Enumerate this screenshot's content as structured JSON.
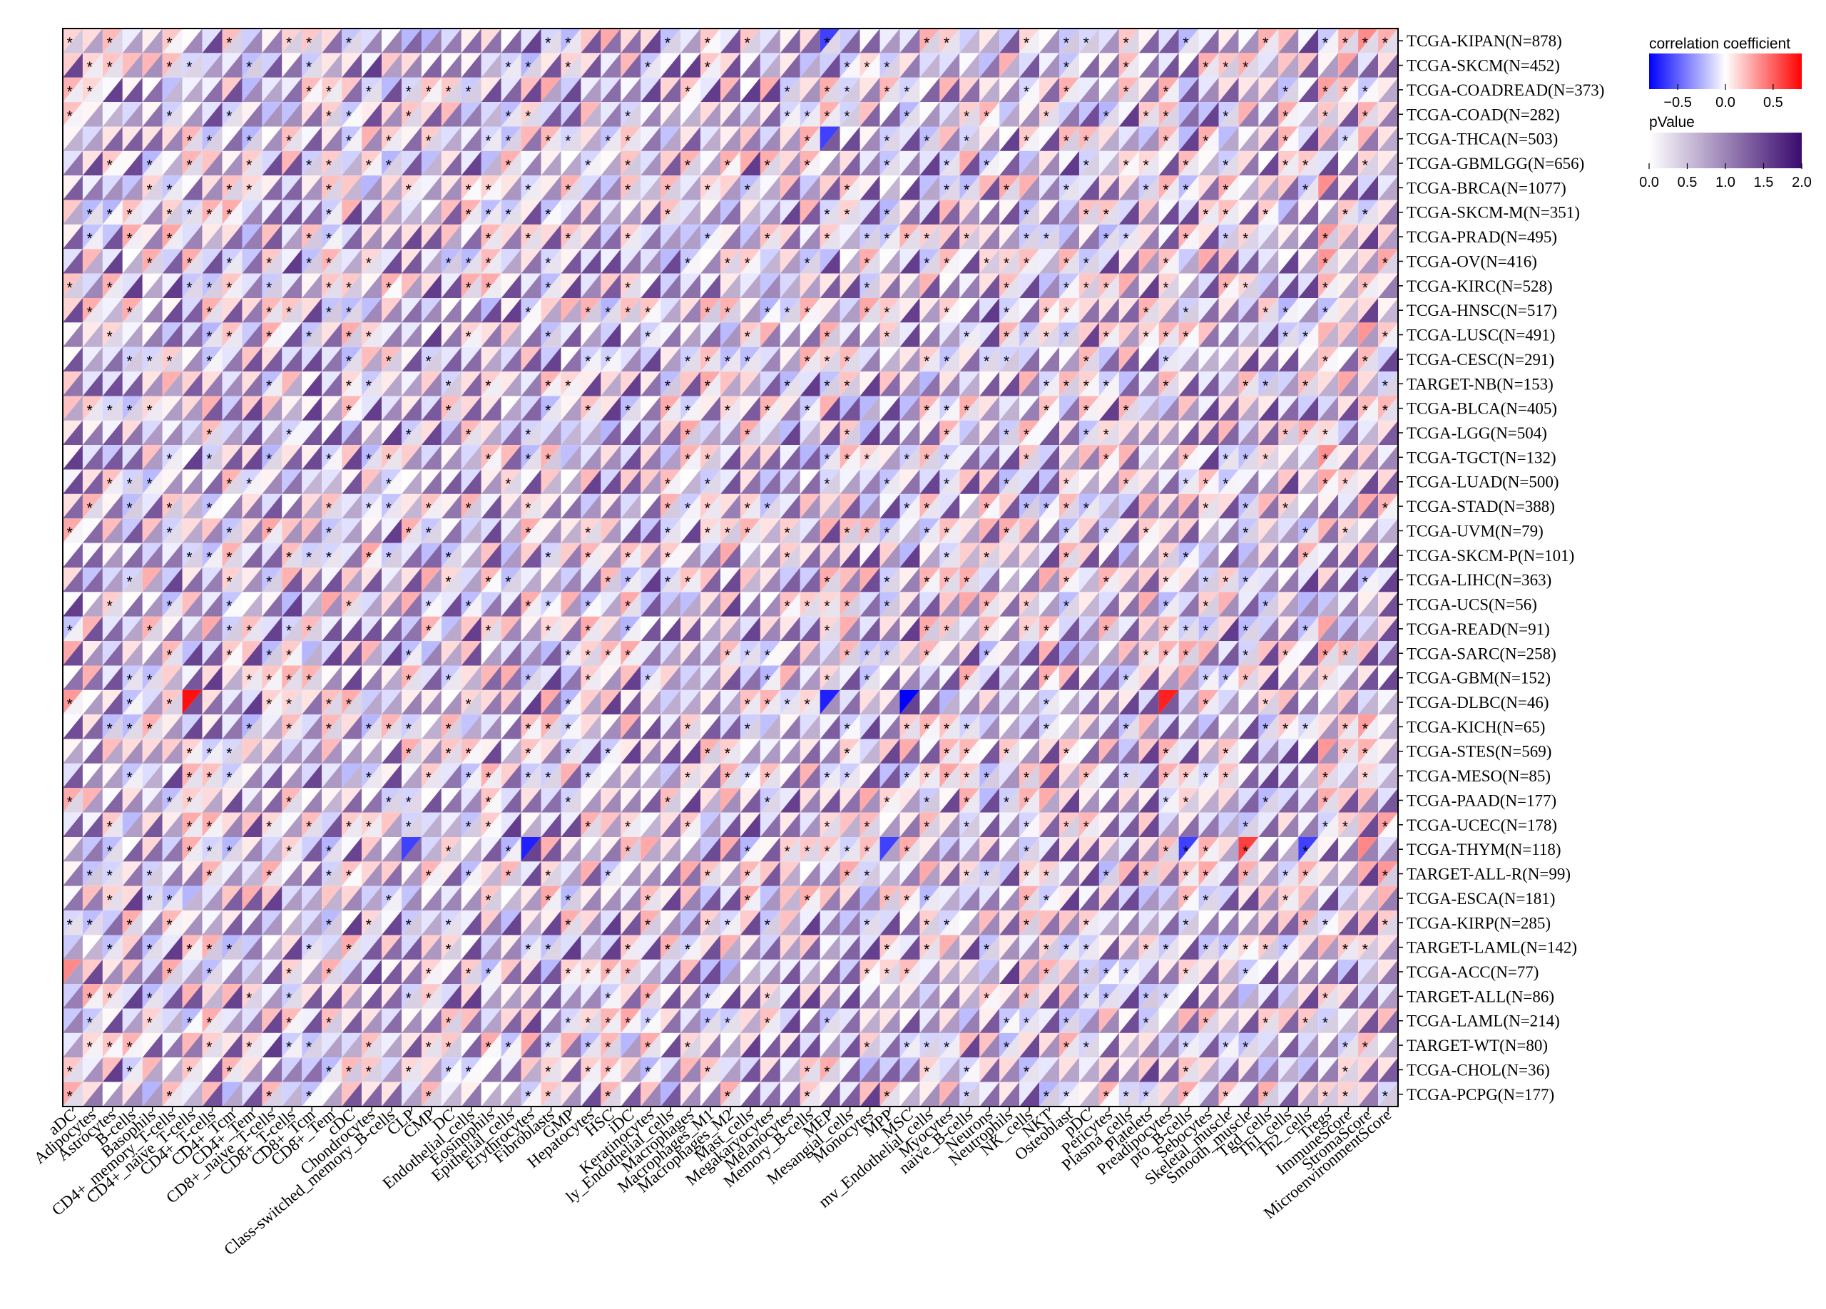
{
  "chart_data": {
    "type": "heatmap",
    "title": "",
    "xlabel": "",
    "ylabel": "",
    "rows": [
      "TCGA-KIPAN(N=878)",
      "TCGA-SKCM(N=452)",
      "TCGA-COADREAD(N=373)",
      "TCGA-COAD(N=282)",
      "TCGA-THCA(N=503)",
      "TCGA-GBMLGG(N=656)",
      "TCGA-BRCA(N=1077)",
      "TCGA-SKCM-M(N=351)",
      "TCGA-PRAD(N=495)",
      "TCGA-OV(N=416)",
      "TCGA-KIRC(N=528)",
      "TCGA-HNSC(N=517)",
      "TCGA-LUSC(N=491)",
      "TCGA-CESC(N=291)",
      "TARGET-NB(N=153)",
      "TCGA-BLCA(N=405)",
      "TCGA-LGG(N=504)",
      "TCGA-TGCT(N=132)",
      "TCGA-LUAD(N=500)",
      "TCGA-STAD(N=388)",
      "TCGA-UVM(N=79)",
      "TCGA-SKCM-P(N=101)",
      "TCGA-LIHC(N=363)",
      "TCGA-UCS(N=56)",
      "TCGA-READ(N=91)",
      "TCGA-SARC(N=258)",
      "TCGA-GBM(N=152)",
      "TCGA-DLBC(N=46)",
      "TCGA-KICH(N=65)",
      "TCGA-STES(N=569)",
      "TCGA-MESO(N=85)",
      "TCGA-PAAD(N=177)",
      "TCGA-UCEC(N=178)",
      "TCGA-THYM(N=118)",
      "TARGET-ALL-R(N=99)",
      "TCGA-ESCA(N=181)",
      "TCGA-KIRP(N=285)",
      "TARGET-LAML(N=142)",
      "TCGA-ACC(N=77)",
      "TARGET-ALL(N=86)",
      "TCGA-LAML(N=214)",
      "TARGET-WT(N=80)",
      "TCGA-CHOL(N=36)",
      "TCGA-PCPG(N=177)"
    ],
    "columns": [
      "aDC",
      "Adipocytes",
      "Astrocytes",
      "B-cells",
      "Basophils",
      "CD4+_memory_T-cells",
      "CD4+_naive_T-cells",
      "CD4+_T-cells",
      "CD4+_Tcm",
      "CD4+_Tem",
      "CD8+_naive_T-cells",
      "CD8+_T-cells",
      "CD8+_Tcm",
      "CD8+_Tem",
      "cDC",
      "Chondrocytes",
      "Class-switched_memory_B-cells",
      "CLP",
      "CMP",
      "DC",
      "Endothelial_cells",
      "Eosinophils",
      "Epithelial_cells",
      "Erythrocytes",
      "Fibroblasts",
      "GMP",
      "Hepatocytes",
      "HSC",
      "iDC",
      "Keratinocytes",
      "ly_Endothelial_cells",
      "Macrophages",
      "Macrophages_M1",
      "Macrophages_M2",
      "Mast_cells",
      "Megakaryocytes",
      "Melanocytes",
      "Memory_B-cells",
      "MEP",
      "Mesangial_cells",
      "Monocytes",
      "MPP",
      "MSC",
      "mv_Endothelial_cells",
      "Myocytes",
      "naive_B-cells",
      "Neurons",
      "Neutrophils",
      "NK_cells",
      "NKT",
      "Osteoblast",
      "pDC",
      "Pericytes",
      "Plasma_cells",
      "Platelets",
      "Preadipocytes",
      "pro_B-cells",
      "Sebocytes",
      "Skeletal_muscle",
      "Smooth_muscle",
      "Tgd_cells",
      "Th1_cells",
      "Th2_cells",
      "Tregs",
      "ImmuneScore",
      "StromaScore",
      "MicroenvironmentScore"
    ],
    "significance_marker": "*",
    "legend": {
      "position": "top-right",
      "correlation": {
        "title": "correlation coefficient",
        "range": [
          -0.8,
          0.8
        ],
        "ticks": [
          "−0.5",
          "0.0",
          "0.5"
        ],
        "tick_values": [
          -0.5,
          0.0,
          0.5
        ],
        "low_color": "#0000FF",
        "mid_color": "#FFFFFF",
        "high_color": "#FF0000"
      },
      "pvalue": {
        "title": "pValue",
        "range": [
          0.0,
          2.0
        ],
        "ticks": [
          "0.0",
          "0.5",
          "1.0",
          "1.5",
          "2.0"
        ],
        "tick_values": [
          0.0,
          0.5,
          1.0,
          1.5,
          2.0
        ],
        "low_color": "#FFFFFF",
        "high_color": "#3A0A6E"
      }
    },
    "highlighted_cells": [
      {
        "row": "TCGA-DLBC(N=46)",
        "column": "CD4+_naive_T-cells",
        "correlation": 0.75
      },
      {
        "row": "TCGA-DLBC(N=46)",
        "column": "MEP",
        "correlation": -0.7
      },
      {
        "row": "TCGA-DLBC(N=46)",
        "column": "MSC",
        "correlation": -0.8
      },
      {
        "row": "TCGA-DLBC(N=46)",
        "column": "Preadipocytes",
        "correlation": 0.7
      },
      {
        "row": "TCGA-KIPAN(N=878)",
        "column": "MEP",
        "correlation": -0.6
      },
      {
        "row": "TCGA-THCA(N=503)",
        "column": "MEP",
        "correlation": -0.6
      },
      {
        "row": "TCGA-THYM(N=118)",
        "column": "CLP",
        "correlation": -0.6
      },
      {
        "row": "TCGA-THYM(N=118)",
        "column": "Erythrocytes",
        "correlation": -0.7
      },
      {
        "row": "TCGA-THYM(N=118)",
        "column": "MPP",
        "correlation": -0.6
      },
      {
        "row": "TCGA-THYM(N=118)",
        "column": "pro_B-cells",
        "correlation": -0.6
      },
      {
        "row": "TCGA-THYM(N=118)",
        "column": "Smooth_muscle",
        "correlation": 0.6
      },
      {
        "row": "TCGA-THYM(N=118)",
        "column": "Th2_cells",
        "correlation": -0.6
      }
    ]
  }
}
